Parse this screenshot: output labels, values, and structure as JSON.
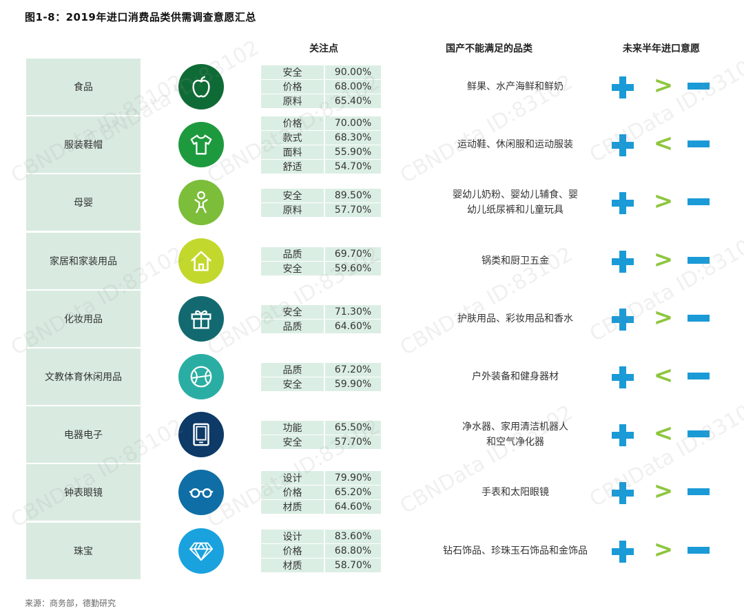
{
  "title": "图1-8：2019年进口消费品类供需调查意愿汇总",
  "headers": {
    "focus": "关注点",
    "unmet": "国产不能满足的品类",
    "intent": "未来半年进口意愿"
  },
  "colors": {
    "category_bg": "#d9ebe1",
    "factor_bg": "#dbeee4",
    "plus_minus": "#1a9ad6",
    "compare": "#8ec63f"
  },
  "rows": [
    {
      "category": "食品",
      "icon": "apple-icon",
      "icon_color": "#0f6b35",
      "factors": [
        [
          "安全",
          "90.00%"
        ],
        [
          "价格",
          "68.00%"
        ],
        [
          "原料",
          "65.40%"
        ]
      ],
      "unmet": "鲜果、水产海鲜和鲜奶",
      "compare": ">"
    },
    {
      "category": "服装鞋帽",
      "icon": "tshirt-icon",
      "icon_color": "#1e9a3e",
      "factors": [
        [
          "价格",
          "70.00%"
        ],
        [
          "款式",
          "68.30%"
        ],
        [
          "面料",
          "55.90%"
        ],
        [
          "舒适",
          "54.70%"
        ]
      ],
      "unmet": "运动鞋、休闲服和运动服装",
      "compare": "<"
    },
    {
      "category": "母婴",
      "icon": "baby-icon",
      "icon_color": "#7cbd3a",
      "factors": [
        [
          "安全",
          "89.50%"
        ],
        [
          "原料",
          "57.70%"
        ]
      ],
      "unmet": "婴幼儿奶粉、婴幼儿辅食、婴\n幼儿纸尿裤和儿童玩具",
      "compare": ">"
    },
    {
      "category": "家居和家装用品",
      "icon": "house-icon",
      "icon_color": "#c3d82c",
      "factors": [
        [
          "品质",
          "69.70%"
        ],
        [
          "安全",
          "59.60%"
        ]
      ],
      "unmet": "锅类和厨卫五金",
      "compare": ">"
    },
    {
      "category": "化妆用品",
      "icon": "gift-icon",
      "icon_color": "#126a70",
      "factors": [
        [
          "安全",
          "71.30%"
        ],
        [
          "品质",
          "64.60%"
        ]
      ],
      "unmet": "护肤用品、彩妆用品和香水",
      "compare": ">"
    },
    {
      "category": "文教体育休闲用品",
      "icon": "ball-icon",
      "icon_color": "#2aaea3",
      "factors": [
        [
          "品质",
          "67.20%"
        ],
        [
          "安全",
          "59.90%"
        ]
      ],
      "unmet": "户外装备和健身器材",
      "compare": "<"
    },
    {
      "category": "电器电子",
      "icon": "tablet-icon",
      "icon_color": "#0d3a66",
      "factors": [
        [
          "功能",
          "65.50%"
        ],
        [
          "安全",
          "57.70%"
        ]
      ],
      "unmet": "净水器、家用清洁机器人\n和空气净化器",
      "compare": "<"
    },
    {
      "category": "钟表眼镜",
      "icon": "glasses-icon",
      "icon_color": "#0f6ea6",
      "factors": [
        [
          "设计",
          "79.90%"
        ],
        [
          "价格",
          "65.20%"
        ],
        [
          "材质",
          "64.60%"
        ]
      ],
      "unmet": "手表和太阳眼镜",
      "compare": ">"
    },
    {
      "category": "珠宝",
      "icon": "diamond-icon",
      "icon_color": "#1aa2de",
      "factors": [
        [
          "设计",
          "83.60%"
        ],
        [
          "价格",
          "68.80%"
        ],
        [
          "材质",
          "58.70%"
        ]
      ],
      "unmet": "钻石饰品、珍珠玉石饰品和金饰品",
      "compare": ">"
    }
  ],
  "source": "来源：商务部，德勤研究",
  "watermark": "CBNData ID:83102"
}
